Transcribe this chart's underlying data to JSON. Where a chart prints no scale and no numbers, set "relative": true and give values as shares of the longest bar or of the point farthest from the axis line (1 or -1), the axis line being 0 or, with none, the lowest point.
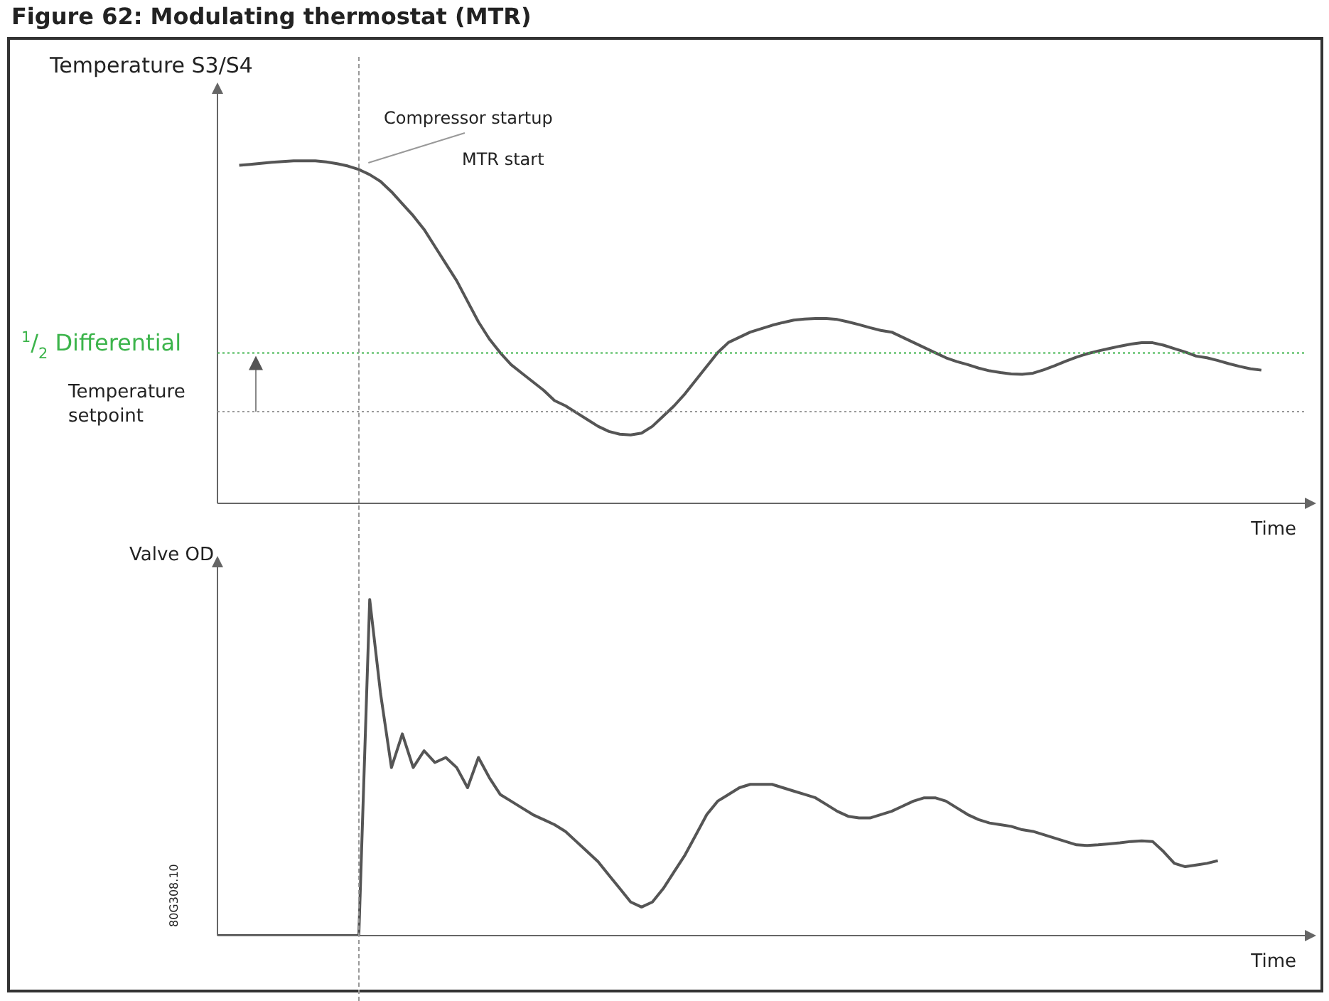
{
  "chart_data": [
    {
      "type": "line",
      "title": "Figure 62: Modulating thermostat (MTR)",
      "xlabel": "Time",
      "ylabel": "Temperature S3/S4",
      "relative": true,
      "tick_labels": false,
      "grid": false,
      "legend": false,
      "marker": "none",
      "line_style": "solid",
      "categories": [
        null,
        null,
        null,
        null,
        null,
        null,
        null,
        null,
        null,
        null,
        null,
        null,
        null,
        null,
        null,
        null,
        null,
        null,
        null,
        null,
        null,
        null,
        null,
        null,
        null,
        null,
        null,
        null,
        null,
        null,
        null,
        null,
        null,
        null,
        null,
        null,
        null,
        null,
        null,
        null,
        null,
        null,
        null,
        null,
        null,
        null,
        null,
        null,
        null,
        null,
        null,
        null,
        null,
        null,
        null,
        null,
        null,
        null,
        null,
        null,
        null,
        null,
        null,
        null,
        null,
        null,
        null,
        null,
        null,
        null,
        null,
        null,
        null,
        null,
        null,
        null,
        null,
        null,
        null,
        null,
        null,
        null,
        null,
        null,
        null,
        null,
        null,
        null,
        null,
        null,
        null,
        null,
        null,
        null,
        null,
        null,
        null,
        null,
        null,
        null,
        null
      ],
      "series": [
        {
          "color": "#555555",
          "values": [
            null,
            null,
            0.987,
            0.99,
            0.993,
            0.996,
            0.998,
            1.0,
            1.0,
            1.0,
            0.997,
            0.992,
            0.985,
            0.975,
            0.96,
            0.94,
            0.91,
            0.875,
            0.84,
            0.8,
            0.75,
            0.7,
            0.65,
            0.59,
            0.53,
            0.48,
            0.44,
            0.405,
            0.38,
            0.355,
            0.33,
            0.3,
            0.285,
            0.265,
            0.245,
            0.225,
            0.21,
            0.202,
            0.2,
            0.205,
            0.225,
            0.255,
            0.285,
            0.32,
            0.36,
            0.4,
            0.44,
            0.47,
            0.485,
            0.5,
            0.51,
            0.52,
            0.528,
            0.535,
            0.538,
            0.54,
            0.54,
            0.537,
            0.53,
            0.522,
            0.513,
            0.505,
            0.5,
            0.485,
            0.47,
            0.455,
            0.44,
            0.425,
            0.414,
            0.405,
            0.395,
            0.387,
            0.382,
            0.378,
            0.377,
            0.38,
            0.39,
            0.402,
            0.415,
            0.427,
            0.437,
            0.445,
            0.452,
            0.459,
            0.465,
            0.469,
            0.469,
            0.462,
            0.452,
            0.442,
            0.43,
            0.425,
            0.417,
            0.408,
            0.4,
            0.393,
            0.389,
            null,
            null,
            null,
            null
          ]
        }
      ],
      "ref_lines": [
        {
          "axis": "y",
          "value": 0.439,
          "label": "$^{1}$/$_{2}$ Differential",
          "color": "#3cb44b",
          "line_style": "dotted"
        },
        {
          "axis": "y",
          "value": 0.268,
          "label": "Temperature setpoint",
          "color": "#999999",
          "line_style": "dotted"
        }
      ],
      "annotations": [
        "Compressor startup",
        "MTR start"
      ]
    },
    {
      "type": "line",
      "xlabel": "Time",
      "ylabel": "Valve OD",
      "relative": true,
      "tick_labels": false,
      "grid": false,
      "legend": false,
      "marker": "none",
      "line_style": "solid",
      "categories": [
        null,
        null,
        null,
        null,
        null,
        null,
        null,
        null,
        null,
        null,
        null,
        null,
        null,
        null,
        null,
        null,
        null,
        null,
        null,
        null,
        null,
        null,
        null,
        null,
        null,
        null,
        null,
        null,
        null,
        null,
        null,
        null,
        null,
        null,
        null,
        null,
        null,
        null,
        null,
        null,
        null,
        null,
        null,
        null,
        null,
        null,
        null,
        null,
        null,
        null,
        null,
        null,
        null,
        null,
        null,
        null,
        null,
        null,
        null,
        null,
        null,
        null,
        null,
        null,
        null,
        null,
        null,
        null,
        null,
        null,
        null,
        null,
        null,
        null,
        null,
        null,
        null,
        null,
        null,
        null,
        null,
        null,
        null,
        null,
        null,
        null,
        null,
        null,
        null,
        null,
        null,
        null,
        null,
        null,
        null,
        null,
        null,
        null,
        null,
        null,
        null
      ],
      "series": [
        {
          "color": "#555555",
          "values": [
            0,
            0,
            0,
            0,
            0,
            0,
            0,
            0,
            0,
            0,
            0,
            0,
            0,
            0,
            1.0,
            0.72,
            0.5,
            0.6,
            0.5,
            0.55,
            0.515,
            0.53,
            0.5,
            0.44,
            0.53,
            0.47,
            0.42,
            0.4,
            0.38,
            0.36,
            0.345,
            0.33,
            0.31,
            0.28,
            0.25,
            0.22,
            0.18,
            0.14,
            0.1,
            0.085,
            0.1,
            0.14,
            0.19,
            0.24,
            0.3,
            0.36,
            0.4,
            0.42,
            0.44,
            0.45,
            0.45,
            0.45,
            0.44,
            0.43,
            0.42,
            0.41,
            0.39,
            0.37,
            0.355,
            0.35,
            0.35,
            0.36,
            0.37,
            0.385,
            0.4,
            0.41,
            0.41,
            0.4,
            0.38,
            0.36,
            0.345,
            0.335,
            0.33,
            0.325,
            0.315,
            0.31,
            0.3,
            0.29,
            0.28,
            0.27,
            0.268,
            0.27,
            0.273,
            0.276,
            0.28,
            0.282,
            0.28,
            0.25,
            0.215,
            0.205,
            0.21,
            0.215,
            0.223,
            null,
            null,
            null,
            null,
            null,
            null,
            null,
            null
          ]
        }
      ],
      "annotations": [
        "80G308.10"
      ]
    }
  ]
}
